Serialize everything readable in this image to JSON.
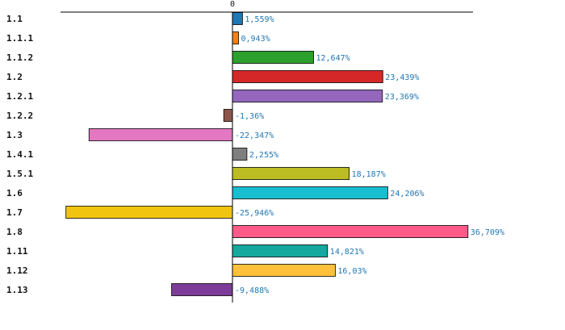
{
  "chart_data": {
    "type": "bar",
    "orientation": "horizontal",
    "title": "",
    "xlabel": "",
    "ylabel": "",
    "xlim": [
      -26.7,
      36.709
    ],
    "x_ticks": [
      "0"
    ],
    "zero_label": "0",
    "value_suffix": "%",
    "grid": false,
    "legend": "none",
    "categories": [
      "1.1",
      "1.1.1",
      "1.1.2",
      "1.2",
      "1.2.1",
      "1.2.2",
      "1.3",
      "1.4.1",
      "1.5.1",
      "1.6",
      "1.7",
      "1.8",
      "1.11",
      "1.12",
      "1.13"
    ],
    "values": [
      1.559,
      0.943,
      12.647,
      23.439,
      23.369,
      -1.36,
      -22.347,
      2.255,
      18.187,
      24.206,
      -25.946,
      36.709,
      14.821,
      16.03,
      -9.488
    ],
    "value_labels": [
      "1,559%",
      "0,943%",
      "12,647%",
      "23,439%",
      "23,369%",
      "-1,36%",
      "-22,347%",
      "2,255%",
      "18,187%",
      "24,206%",
      "-25,946%",
      "36,709%",
      "14,821%",
      "16,03%",
      "-9,488%"
    ],
    "colors": [
      "#1f77b4",
      "#ff7f0e",
      "#2ca02c",
      "#d62728",
      "#9467bd",
      "#8c564b",
      "#e377c2",
      "#7f7f7f",
      "#bcbd22",
      "#17becf",
      "#f1c40f",
      "#ff5a8a",
      "#14a89e",
      "#ffc13b",
      "#7d3c98"
    ],
    "label_color": "#1f77b4"
  }
}
